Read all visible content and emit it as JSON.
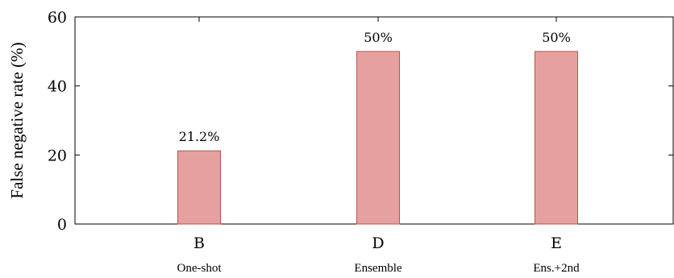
{
  "chart_data": {
    "type": "bar",
    "categories": [
      "B",
      "D",
      "E"
    ],
    "category_sublabels": [
      "One-shot",
      "Ensemble",
      "Ens.+2nd"
    ],
    "values": [
      21.2,
      50,
      50
    ],
    "data_labels": [
      "21.2%",
      "50%",
      "50%"
    ],
    "title": "",
    "xlabel": "",
    "ylabel": "False negative rate (%)",
    "ylim": [
      0,
      60
    ],
    "yticks": [
      0,
      20,
      40,
      60
    ],
    "grid": false,
    "bar_color": "#e6a0a0",
    "bar_edge_color": "#c0504d"
  }
}
